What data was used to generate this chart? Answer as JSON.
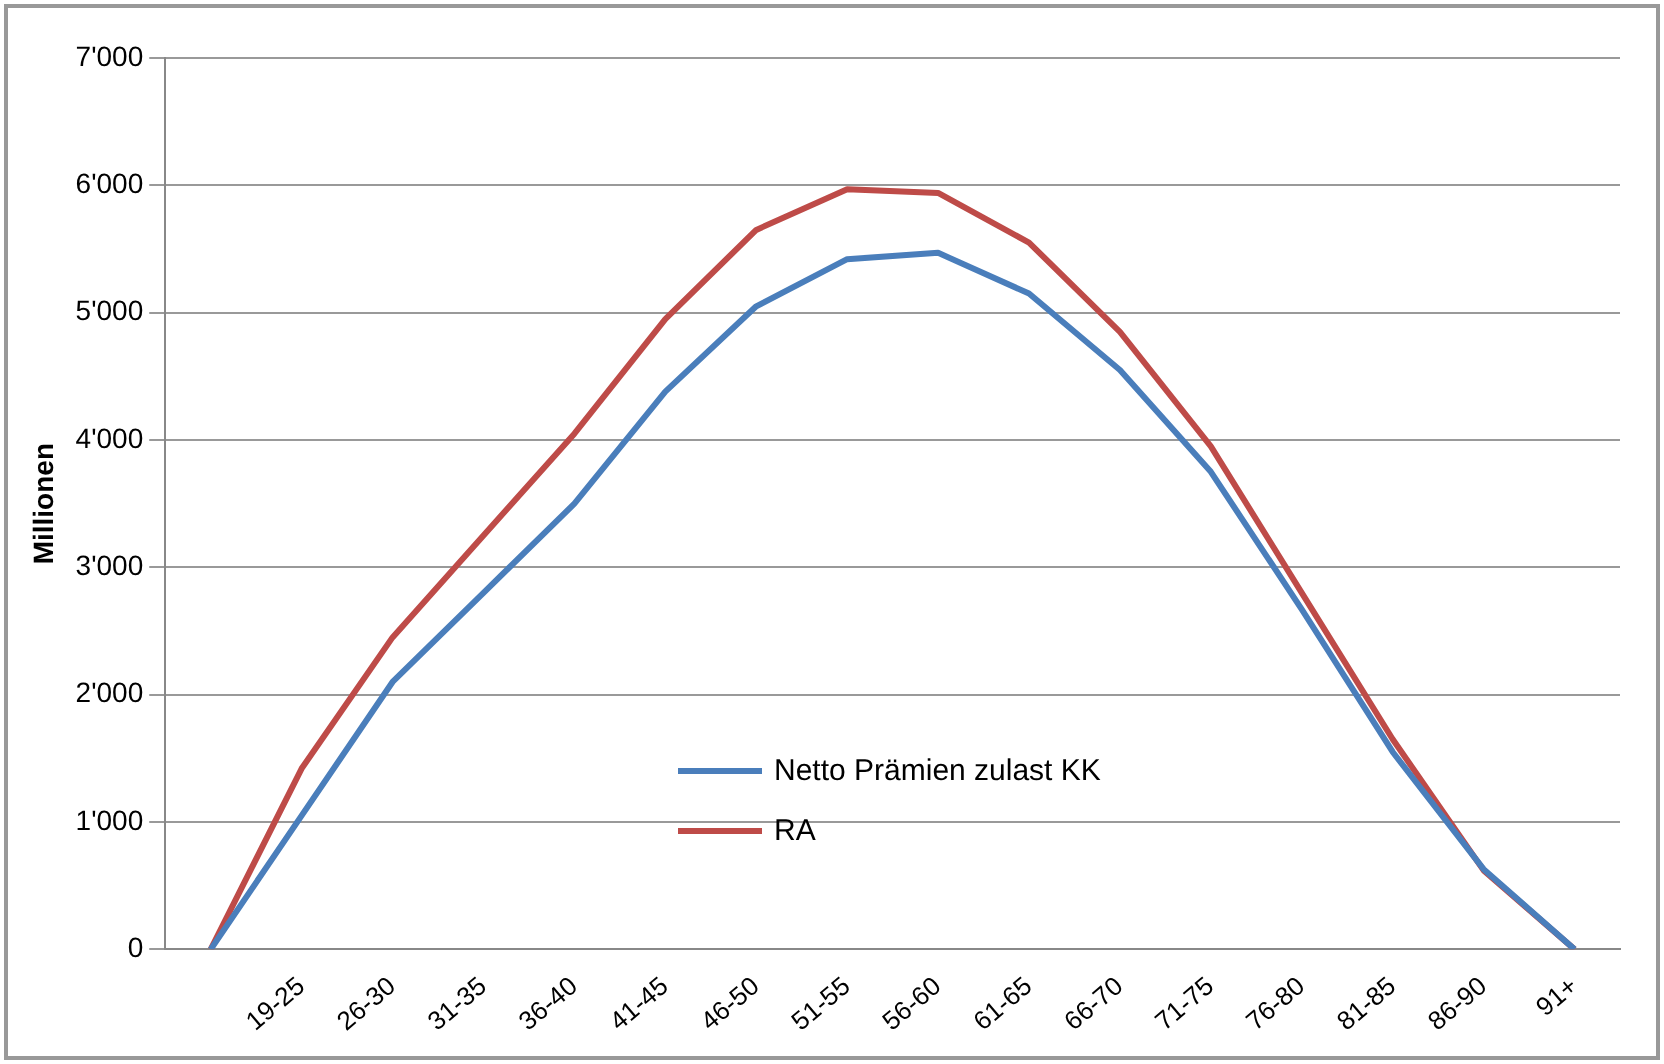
{
  "chart_data": {
    "type": "line",
    "ylabel": "Millionen",
    "categories": [
      null,
      "19-25",
      "26-30",
      "31-35",
      "36-40",
      "41-45",
      "46-50",
      "51-55",
      "56-60",
      "61-65",
      "66-70",
      "71-75",
      "76-80",
      "81-85",
      "86-90",
      "91+"
    ],
    "series": [
      {
        "name": "Netto Prämien zulast KK",
        "color": "#4a7ebb",
        "values": [
          0,
          1050,
          2100,
          2800,
          3500,
          4380,
          5050,
          5420,
          5470,
          5150,
          4550,
          3750,
          2670,
          1550,
          630,
          0
        ]
      },
      {
        "name": "RA",
        "color": "#be4b48",
        "values": [
          0,
          1420,
          2450,
          3250,
          4050,
          4950,
          5650,
          5970,
          5940,
          5550,
          4850,
          3950,
          2800,
          1650,
          620,
          0
        ]
      }
    ],
    "ylim": [
      0,
      7000
    ],
    "yticks": [
      {
        "value": 0,
        "label": "0"
      },
      {
        "value": 1000,
        "label": "1'000"
      },
      {
        "value": 2000,
        "label": "2'000"
      },
      {
        "value": 3000,
        "label": "3'000"
      },
      {
        "value": 4000,
        "label": "4'000"
      },
      {
        "value": 5000,
        "label": "5'000"
      },
      {
        "value": 6000,
        "label": "6'000"
      },
      {
        "value": 7000,
        "label": "7'000"
      }
    ],
    "grid": "y",
    "legend": "bottom",
    "marker": "none",
    "line_style": "solid"
  }
}
